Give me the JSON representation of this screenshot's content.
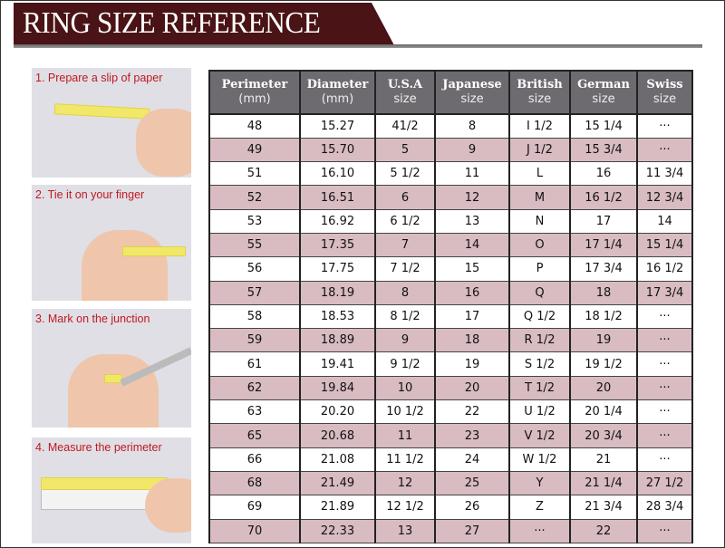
{
  "title": "RING SIZE REFERENCE",
  "steps": [
    "1. Prepare a slip of paper",
    "2. Tie it on your finger",
    "3. Mark on the junction",
    "4. Measure the perimeter"
  ],
  "colors": {
    "banner": "#4a1315",
    "header": "#6e6b70",
    "alt_row": "#d8bcc2",
    "caption": "#c0191f"
  },
  "table": {
    "headers": [
      [
        "Perimeter",
        "(mm)"
      ],
      [
        "Diameter",
        "(mm)"
      ],
      [
        "U.S.A",
        "size"
      ],
      [
        "Japanese",
        "size"
      ],
      [
        "British",
        "size"
      ],
      [
        "German",
        "size"
      ],
      [
        "Swiss",
        "size"
      ]
    ],
    "rows": [
      [
        "48",
        "15.27",
        "41/2",
        "8",
        "I 1/2",
        "15 1/4",
        "···"
      ],
      [
        "49",
        "15.70",
        "5",
        "9",
        "J 1/2",
        "15 3/4",
        "···"
      ],
      [
        "51",
        "16.10",
        "5 1/2",
        "11",
        "L",
        "16",
        "11 3/4"
      ],
      [
        "52",
        "16.51",
        "6",
        "12",
        "M",
        "16 1/2",
        "12 3/4"
      ],
      [
        "53",
        "16.92",
        "6 1/2",
        "13",
        "N",
        "17",
        "14"
      ],
      [
        "55",
        "17.35",
        "7",
        "14",
        "O",
        "17 1/4",
        "15 1/4"
      ],
      [
        "56",
        "17.75",
        "7 1/2",
        "15",
        "P",
        "17 3/4",
        "16 1/2"
      ],
      [
        "57",
        "18.19",
        "8",
        "16",
        "Q",
        "18",
        "17 3/4"
      ],
      [
        "58",
        "18.53",
        "8 1/2",
        "17",
        "Q  1/2",
        "18 1/2",
        "···"
      ],
      [
        "59",
        "18.89",
        "9",
        "18",
        "R 1/2",
        "19",
        "···"
      ],
      [
        "61",
        "19.41",
        "9 1/2",
        "19",
        "S 1/2",
        "19 1/2",
        "···"
      ],
      [
        "62",
        "19.84",
        "10",
        "20",
        "T 1/2",
        "20",
        "···"
      ],
      [
        "63",
        "20.20",
        "10 1/2",
        "22",
        "U 1/2",
        "20 1/4",
        "···"
      ],
      [
        "65",
        "20.68",
        "11",
        "23",
        "V 1/2",
        "20 3/4",
        "···"
      ],
      [
        "66",
        "21.08",
        "11 1/2",
        "24",
        "W 1/2",
        "21",
        "···"
      ],
      [
        "68",
        "21.49",
        "12",
        "25",
        "Y",
        "21 1/4",
        "27 1/2"
      ],
      [
        "69",
        "21.89",
        "12 1/2",
        "26",
        "Z",
        "21 3/4",
        "28 3/4"
      ],
      [
        "70",
        "22.33",
        "13",
        "27",
        "···",
        "22",
        "···"
      ]
    ]
  }
}
